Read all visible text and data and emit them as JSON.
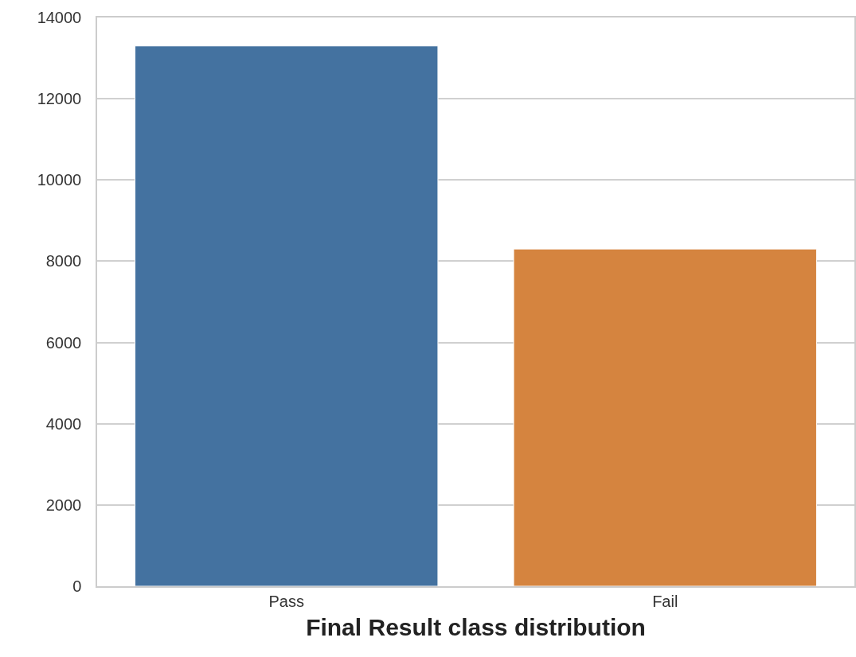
{
  "chart_data": {
    "type": "bar",
    "xlabel": "Final Result class distribution",
    "categories": [
      "Pass",
      "Fail"
    ],
    "values": [
      13300,
      8300
    ],
    "colors": [
      "#4472a0",
      "#d5843f"
    ],
    "ylim": [
      0,
      14000
    ],
    "yticks": [
      0,
      2000,
      4000,
      6000,
      8000,
      10000,
      12000,
      14000
    ],
    "grid": "y"
  }
}
